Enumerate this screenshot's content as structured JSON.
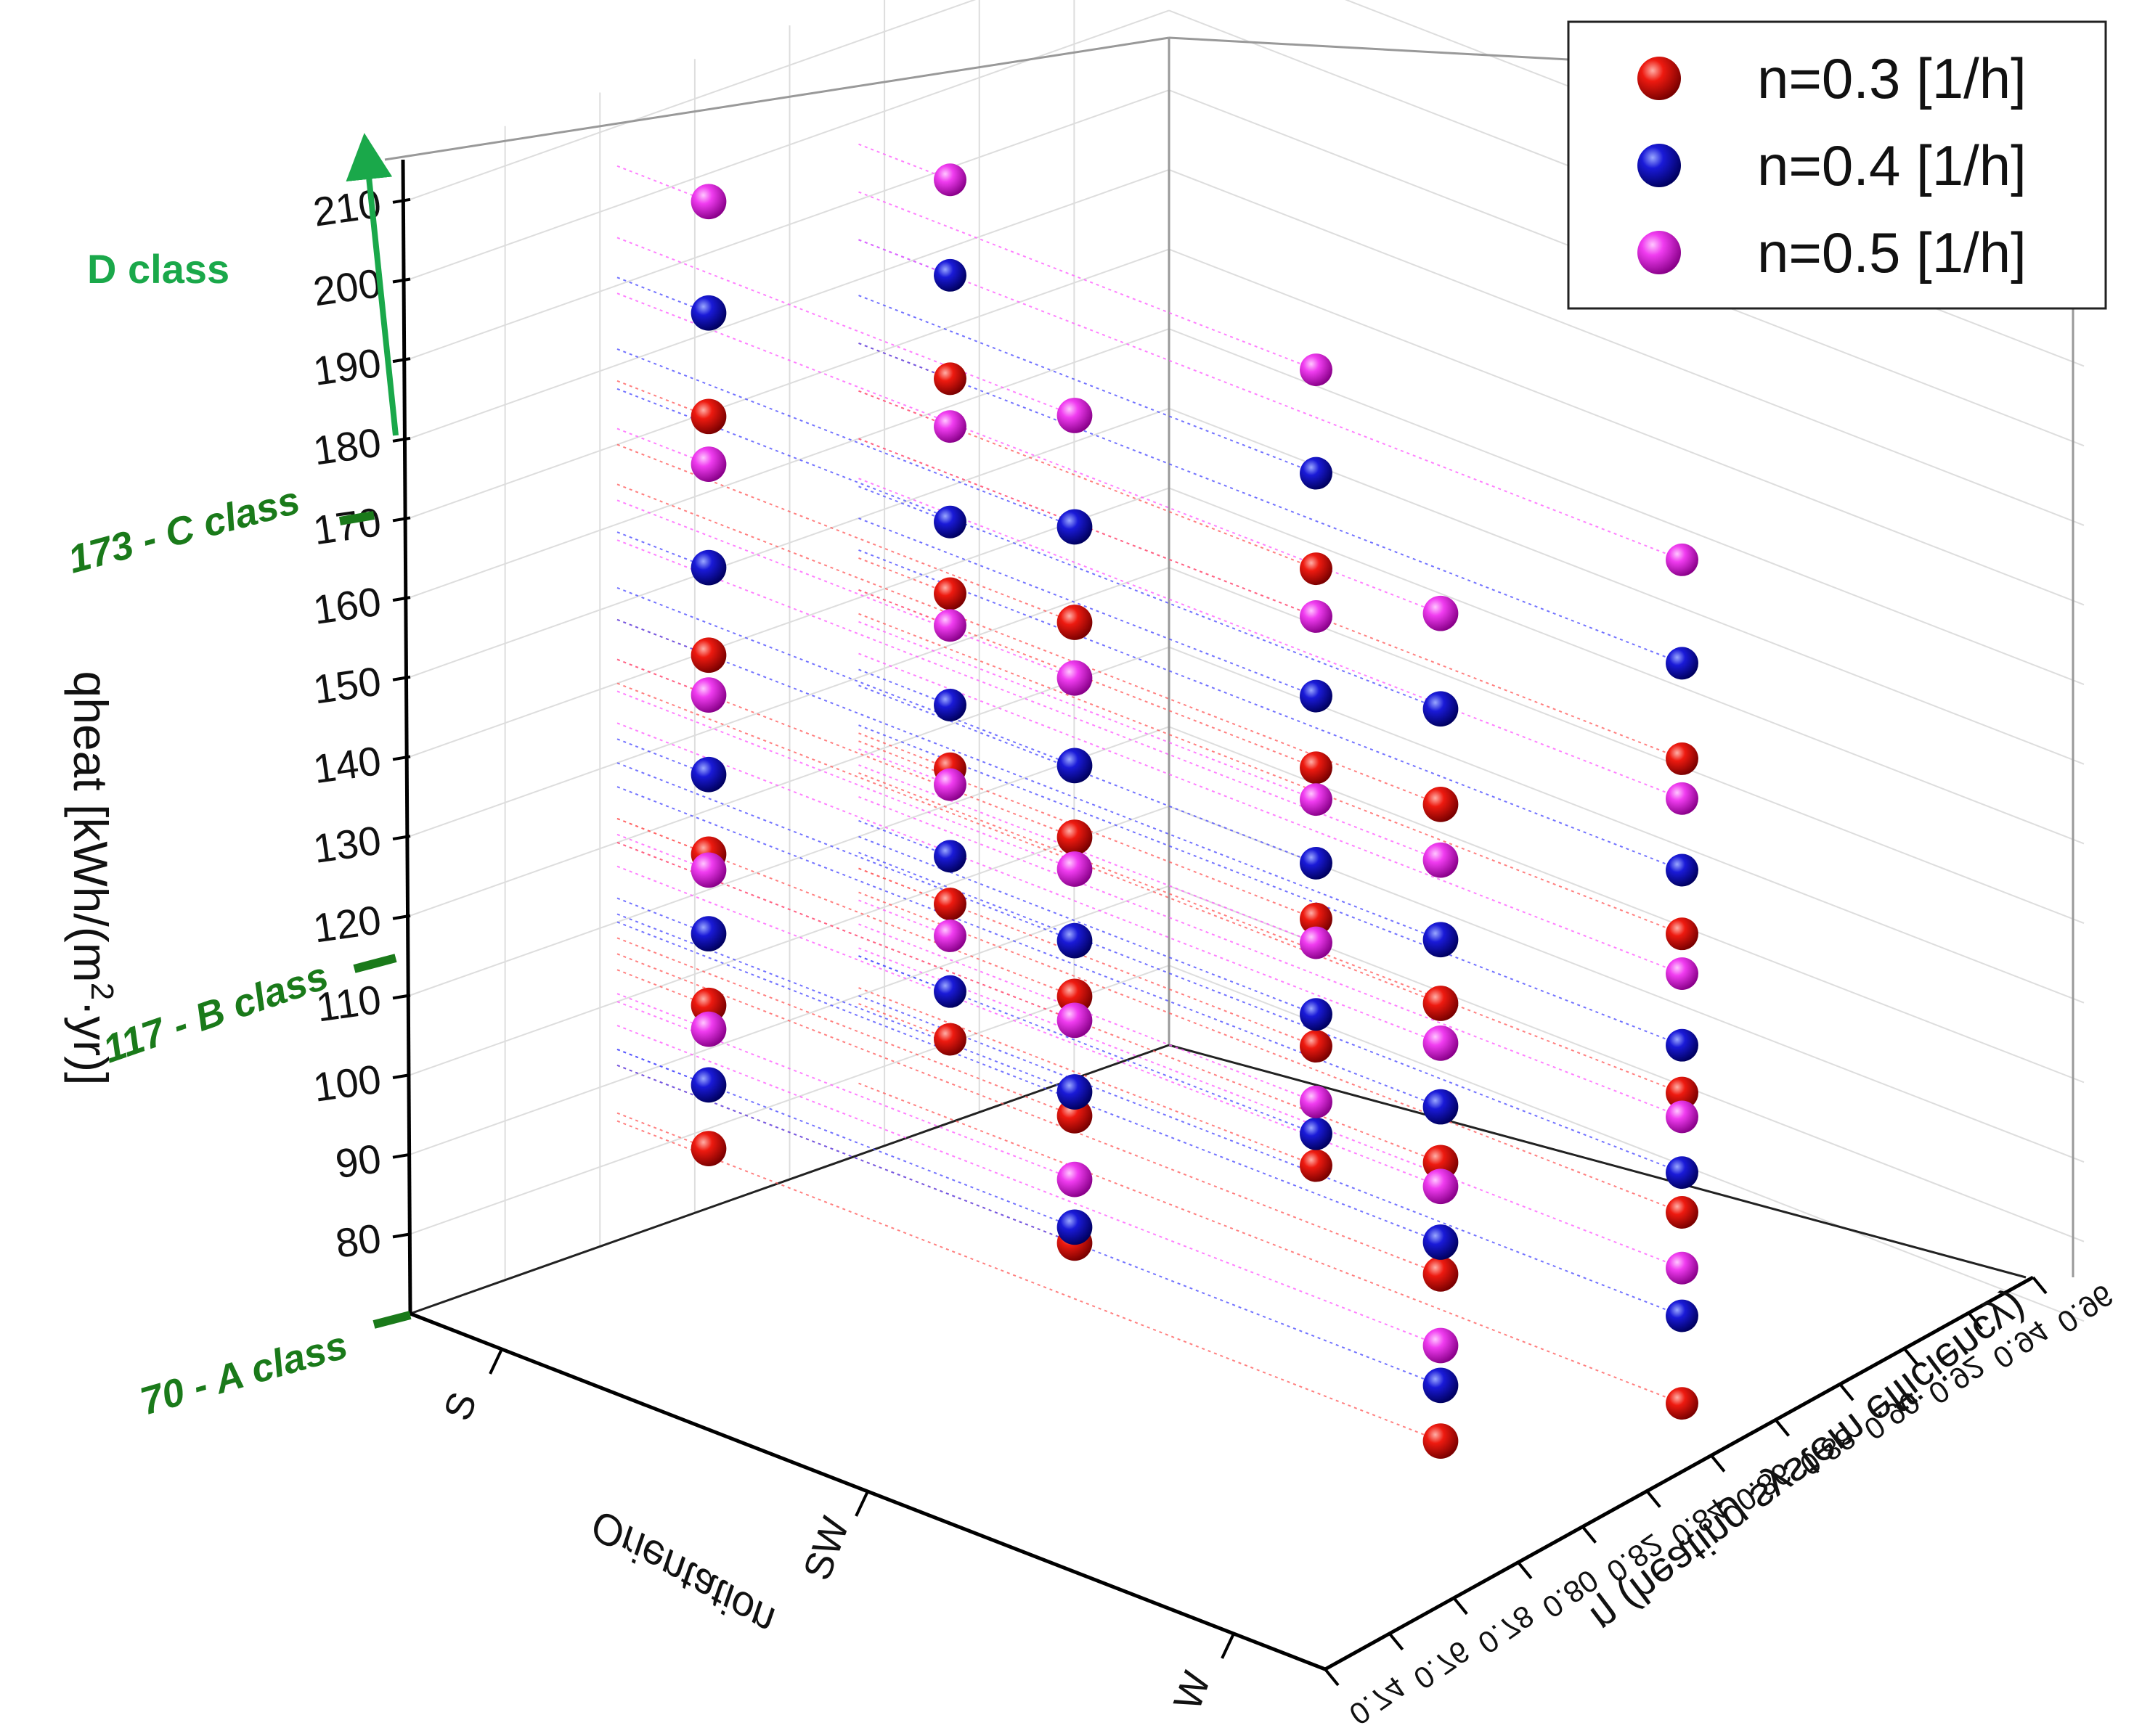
{
  "chart_data": {
    "type": "scatter3d",
    "title": "",
    "zlabel": "qheat [kWh/(m²·yr)]",
    "zlabel_main": "qheat [kWh/(m",
    "zlabel_sup": "2",
    "zlabel_dot": "·",
    "zlabel_end": "yr)]",
    "xlabel": "Orientation",
    "ylabel": "η (heating system efficiency)",
    "zlim": [
      70,
      215
    ],
    "z_ticks": [
      "210",
      "200",
      "190",
      "180",
      "170",
      "160",
      "150",
      "140",
      "130",
      "120",
      "110",
      "100",
      "90",
      "80"
    ],
    "x_ticks": [
      "S",
      "SW",
      "W"
    ],
    "y_ticks": [
      "0.74",
      "0.76",
      "0.78",
      "0.80",
      "0.82",
      "0.84",
      "0.86",
      "0.88",
      "0.90",
      "0.92",
      "0.94",
      "0.96"
    ],
    "legend": [
      {
        "label": "n=0.3 [1/h]",
        "color": "#e00000"
      },
      {
        "label": "n=0.4 [1/h]",
        "color": "#1010c8"
      },
      {
        "label": "n=0.5 [1/h]",
        "color": "#e020e0"
      }
    ],
    "class_labels": [
      {
        "text": "D class",
        "value": 210
      },
      {
        "text": "173 - C class",
        "value": 173
      },
      {
        "text": "117 - B class",
        "value": 117
      },
      {
        "text": "70 - A class",
        "value": 70
      }
    ],
    "grid": true,
    "series": [
      {
        "name": "n=0.3 [1/h]",
        "color": "red",
        "points": [
          {
            "orientation": "S",
            "eta": 0.8,
            "q": [
              178,
              148,
              123,
              104,
              86
            ]
          },
          {
            "orientation": "S",
            "eta": 0.87,
            "q": [
              172,
              145,
              123,
              106,
              89
            ]
          },
          {
            "orientation": "SW",
            "eta": 0.8,
            "q": [
              170,
              143,
              123,
              108,
              92
            ]
          },
          {
            "orientation": "SW",
            "eta": 0.87,
            "q": [
              166,
              141,
              122,
              106,
              91
            ]
          },
          {
            "orientation": "W",
            "eta": 0.8,
            "q": [
              165,
              140,
              120,
              106,
              85
            ]
          },
          {
            "orientation": "W",
            "eta": 0.87,
            "q": [
              160,
              138,
              118,
              103,
              79
            ]
          }
        ]
      },
      {
        "name": "n=0.4 [1/h]",
        "color": "blue",
        "points": [
          {
            "orientation": "S",
            "eta": 0.8,
            "q": [
              191,
              159,
              133,
              113,
              94
            ]
          },
          {
            "orientation": "S",
            "eta": 0.87,
            "q": [
              185,
              154,
              131,
              112,
              95
            ]
          },
          {
            "orientation": "SW",
            "eta": 0.8,
            "q": [
              182,
              152,
              130,
              111,
              94
            ]
          },
          {
            "orientation": "SW",
            "eta": 0.87,
            "q": [
              178,
              150,
              129,
              110,
              95
            ]
          },
          {
            "orientation": "W",
            "eta": 0.8,
            "q": [
              177,
              148,
              127,
              110,
              92
            ]
          },
          {
            "orientation": "W",
            "eta": 0.87,
            "q": [
              172,
              146,
              124,
              108,
              90
            ]
          }
        ]
      },
      {
        "name": "n=0.5 [1/h]",
        "color": "magenta",
        "points": [
          {
            "orientation": "S",
            "eta": 0.8,
            "q": [
              205,
              172,
              143,
              121,
              101
            ]
          },
          {
            "orientation": "S",
            "eta": 0.87,
            "q": [
              197,
              166,
              141,
              121,
              102
            ]
          },
          {
            "orientation": "SW",
            "eta": 0.8,
            "q": [
              196,
              163,
              139,
              120,
              100
            ]
          },
          {
            "orientation": "SW",
            "eta": 0.87,
            "q": [
              191,
              160,
              137,
              119,
              99
            ]
          },
          {
            "orientation": "W",
            "eta": 0.8,
            "q": [
              189,
              158,
              135,
              117,
              97
            ]
          },
          {
            "orientation": "W",
            "eta": 0.87,
            "q": [
              185,
              155,
              133,
              115,
              96
            ]
          }
        ]
      }
    ]
  }
}
